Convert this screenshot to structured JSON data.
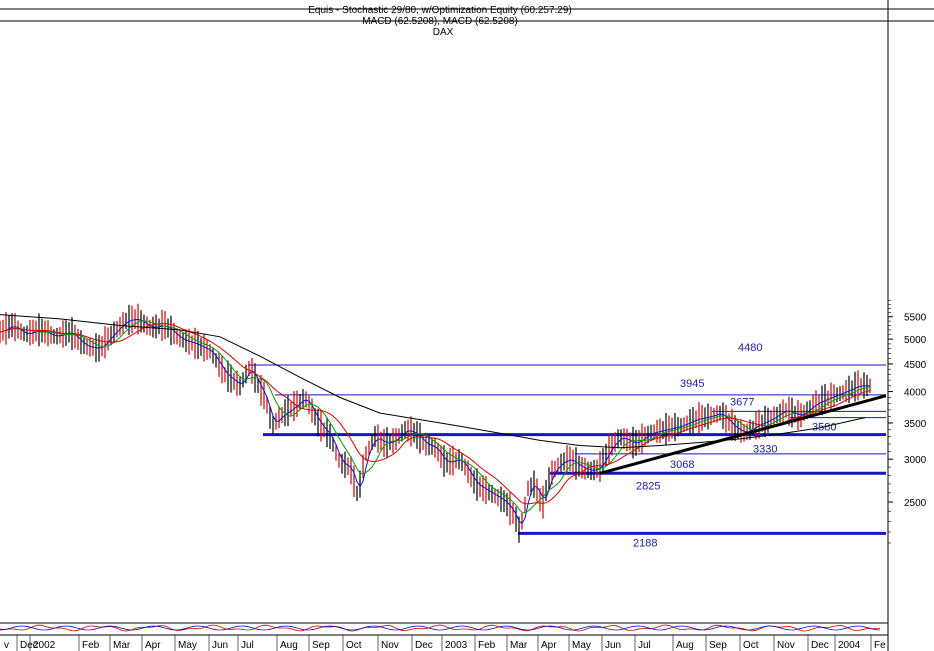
{
  "header": {
    "line1": "Equis - Stochastic 29/80, w/Optimization Equity (60.257.29)",
    "line2": "MACD (62.5208), MACD (62.5208)",
    "line3": "DAX"
  },
  "chart_data": {
    "type": "line",
    "title": "DAX",
    "scale": "log",
    "ylim": [
      1850,
      5900
    ],
    "y_ticks": [
      2500,
      3000,
      3500,
      4000,
      4500,
      5000,
      5500
    ],
    "x_ticks": [
      "v",
      "Dec",
      "2002",
      "Feb",
      "Mar",
      "Apr",
      "May",
      "Jun",
      "Jul",
      "Aug",
      "Sep",
      "Oct",
      "Nov",
      "Dec",
      "2003",
      "Feb",
      "Mar",
      "Apr",
      "May",
      "Jun",
      "Jul",
      "Aug",
      "Sep",
      "Oct",
      "Nov",
      "Dec",
      "2004",
      "Fe"
    ],
    "price_path": [
      [
        0,
        5150
      ],
      [
        12,
        5300
      ],
      [
        25,
        5100
      ],
      [
        40,
        5200
      ],
      [
        55,
        5050
      ],
      [
        70,
        5150
      ],
      [
        85,
        4850
      ],
      [
        100,
        4800
      ],
      [
        112,
        5100
      ],
      [
        125,
        5400
      ],
      [
        137,
        5450
      ],
      [
        150,
        5250
      ],
      [
        165,
        5300
      ],
      [
        180,
        5000
      ],
      [
        195,
        4900
      ],
      [
        210,
        4750
      ],
      [
        225,
        4300
      ],
      [
        240,
        4100
      ],
      [
        250,
        4450
      ],
      [
        258,
        4100
      ],
      [
        265,
        3900
      ],
      [
        272,
        3450
      ],
      [
        280,
        3600
      ],
      [
        290,
        3700
      ],
      [
        305,
        3900
      ],
      [
        318,
        3500
      ],
      [
        330,
        3300
      ],
      [
        340,
        2950
      ],
      [
        350,
        2900
      ],
      [
        358,
        2550
      ],
      [
        365,
        3050
      ],
      [
        375,
        3300
      ],
      [
        385,
        3200
      ],
      [
        395,
        3250
      ],
      [
        405,
        3400
      ],
      [
        415,
        3350
      ],
      [
        425,
        3200
      ],
      [
        435,
        3150
      ],
      [
        445,
        2950
      ],
      [
        460,
        3000
      ],
      [
        475,
        2700
      ],
      [
        490,
        2600
      ],
      [
        505,
        2500
      ],
      [
        515,
        2350
      ],
      [
        520,
        2188
      ],
      [
        528,
        2650
      ],
      [
        535,
        2700
      ],
      [
        542,
        2450
      ],
      [
        550,
        2800
      ],
      [
        560,
        2950
      ],
      [
        570,
        3000
      ],
      [
        580,
        2900
      ],
      [
        592,
        2850
      ],
      [
        600,
        2900
      ],
      [
        610,
        3150
      ],
      [
        620,
        3300
      ],
      [
        635,
        3200
      ],
      [
        650,
        3350
      ],
      [
        665,
        3400
      ],
      [
        680,
        3450
      ],
      [
        695,
        3550
      ],
      [
        710,
        3600
      ],
      [
        720,
        3650
      ],
      [
        735,
        3420
      ],
      [
        745,
        3350
      ],
      [
        755,
        3450
      ],
      [
        770,
        3550
      ],
      [
        785,
        3700
      ],
      [
        800,
        3600
      ],
      [
        815,
        3800
      ],
      [
        830,
        3900
      ],
      [
        845,
        4000
      ],
      [
        858,
        4100
      ],
      [
        868,
        4100
      ]
    ],
    "moving_average_200": [
      [
        0,
        5550
      ],
      [
        60,
        5450
      ],
      [
        120,
        5300
      ],
      [
        180,
        5200
      ],
      [
        220,
        5050
      ],
      [
        260,
        4650
      ],
      [
        300,
        4250
      ],
      [
        340,
        3900
      ],
      [
        380,
        3650
      ],
      [
        420,
        3550
      ],
      [
        460,
        3450
      ],
      [
        500,
        3350
      ],
      [
        540,
        3250
      ],
      [
        580,
        3180
      ],
      [
        620,
        3150
      ],
      [
        660,
        3180
      ],
      [
        700,
        3220
      ],
      [
        740,
        3270
      ],
      [
        780,
        3340
      ],
      [
        820,
        3430
      ],
      [
        865,
        3580
      ]
    ],
    "horizontal_levels": [
      {
        "label": "4480",
        "value": 4480,
        "weight": "thin"
      },
      {
        "label": "3945",
        "value": 3945,
        "weight": "thin"
      },
      {
        "label": "3677",
        "value": 3677,
        "weight": "thin"
      },
      {
        "label": "3580",
        "value": 3580,
        "weight": "thin"
      },
      {
        "label": "3330",
        "value": 3330,
        "weight": "thick"
      },
      {
        "label": "3068",
        "value": 3068,
        "weight": "thin"
      },
      {
        "label": "2825",
        "value": 2825,
        "weight": "thick"
      },
      {
        "label": "2188",
        "value": 2188,
        "weight": "thick"
      }
    ],
    "trendline": [
      [
        600,
        2825
      ],
      [
        886,
        3930
      ]
    ],
    "colors": {
      "price": "#000000",
      "ma_short": "#1010d0",
      "ma_mid": "#00a000",
      "ma_long": "#e00000",
      "ma_200": "#000000",
      "levels": "#1414c8",
      "bars_up": "#d00000"
    }
  }
}
